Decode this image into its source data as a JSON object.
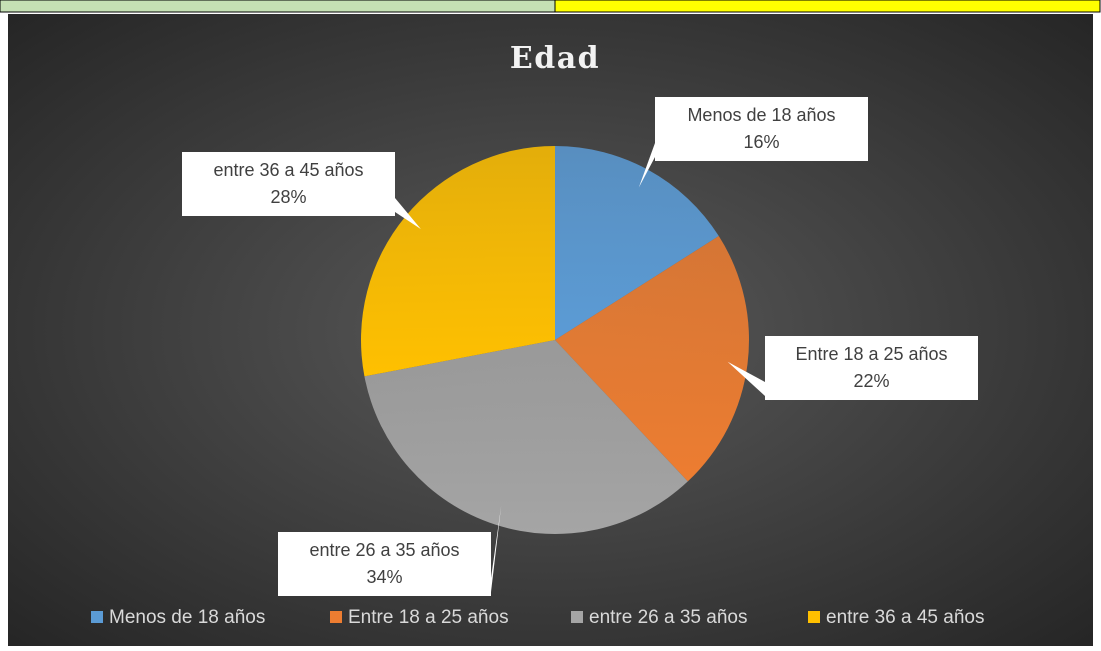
{
  "chart_data": {
    "type": "pie",
    "title": "Edad",
    "categories": [
      "Menos de 18 años",
      "Entre 18 a 25 años",
      "entre 26 a 35 años",
      "entre 36 a 45 años"
    ],
    "values": [
      16,
      22,
      34,
      28
    ],
    "value_labels": [
      "16%",
      "22%",
      "34%",
      "28%"
    ],
    "colors": [
      "#5b9bd5",
      "#ed7d31",
      "#a5a5a5",
      "#ffc000"
    ],
    "legend": "bottom"
  }
}
